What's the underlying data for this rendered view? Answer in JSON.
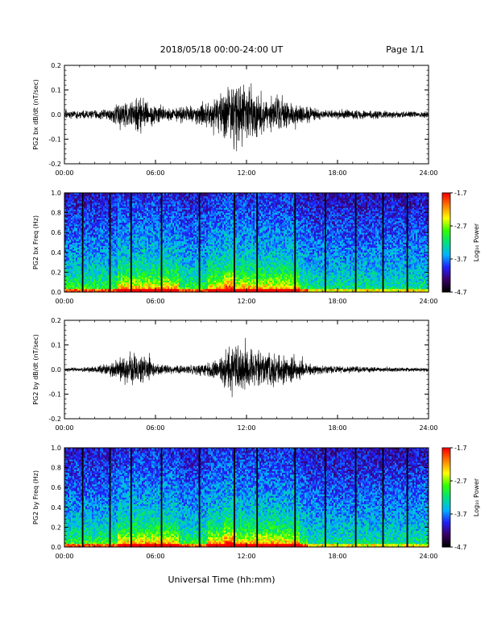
{
  "header": {
    "date_range": "2018/05/18  00:00-24:00 UT",
    "page": "Page 1/1"
  },
  "xaxis": {
    "label": "Universal Time (hh:mm)",
    "ticks": [
      "00:00",
      "06:00",
      "12:00",
      "18:00",
      "24:00"
    ],
    "range_hours": [
      0,
      24
    ]
  },
  "colorbar": {
    "label": "Log₁₀ Power",
    "ticks": [
      "-1.7",
      "-2.7",
      "-3.7",
      "-4.7"
    ],
    "range": [
      -4.7,
      -1.7
    ],
    "colors": [
      "#000000",
      "#3a0066",
      "#2020ff",
      "#00b4ff",
      "#00e080",
      "#30ff00",
      "#ffff00",
      "#ff8000",
      "#ff0000"
    ]
  },
  "chart_data": [
    {
      "type": "line",
      "ylabel": "PG2 bx dB/dt (nT/sec)",
      "ylim": [
        -0.2,
        0.2
      ],
      "yticks": [
        "0.2",
        "0.1",
        "0.0",
        "-0.1",
        "-0.2"
      ],
      "x": [
        0,
        1,
        2,
        3,
        4,
        5,
        6,
        7,
        8,
        9,
        10,
        11,
        12,
        13,
        14,
        15,
        16,
        17,
        18,
        19,
        20,
        21,
        22,
        23,
        24
      ],
      "amplitude_envelope": [
        0.02,
        0.02,
        0.02,
        0.03,
        0.06,
        0.09,
        0.05,
        0.03,
        0.04,
        0.05,
        0.07,
        0.16,
        0.15,
        0.1,
        0.09,
        0.05,
        0.04,
        0.02,
        0.02,
        0.02,
        0.02,
        0.02,
        0.015,
        0.015,
        0.015
      ],
      "color": "#000000"
    },
    {
      "type": "heatmap",
      "ylabel": "PG2 bx Freq (Hz)",
      "ylim": [
        0,
        1
      ],
      "yticks": [
        "1.0",
        "0.8",
        "0.6",
        "0.4",
        "0.2",
        "0.0"
      ],
      "x_hours": [
        0,
        24
      ],
      "dark_vertical_lines_hours": [
        1.2,
        3.0,
        4.4,
        6.4,
        8.9,
        11.2,
        12.7,
        15.2,
        17.2,
        19.2,
        21.0,
        22.6
      ],
      "low_freq_enhancement_hours": [
        [
          3.5,
          7.5
        ],
        [
          9.5,
          15.5
        ]
      ]
    },
    {
      "type": "line",
      "ylabel": "PG2 by dB/dt (nT/sec)",
      "ylim": [
        -0.2,
        0.2
      ],
      "yticks": [
        "0.2",
        "0.1",
        "0.0",
        "-0.1",
        "-0.2"
      ],
      "x": [
        0,
        1,
        2,
        3,
        4,
        5,
        6,
        7,
        8,
        9,
        10,
        11,
        12,
        13,
        14,
        15,
        16,
        17,
        18,
        19,
        20,
        21,
        22,
        23,
        24
      ],
      "amplitude_envelope": [
        0.01,
        0.01,
        0.015,
        0.03,
        0.08,
        0.08,
        0.03,
        0.02,
        0.02,
        0.03,
        0.05,
        0.12,
        0.09,
        0.08,
        0.08,
        0.06,
        0.03,
        0.02,
        0.015,
        0.015,
        0.015,
        0.01,
        0.01,
        0.01,
        0.01
      ],
      "color": "#000000"
    },
    {
      "type": "heatmap",
      "ylabel": "PG2 by Freq (Hz)",
      "ylim": [
        0,
        1
      ],
      "yticks": [
        "1.0",
        "0.8",
        "0.6",
        "0.4",
        "0.2",
        "0.0"
      ],
      "x_hours": [
        0,
        24
      ],
      "dark_vertical_lines_hours": [
        1.2,
        3.0,
        4.4,
        6.4,
        8.9,
        11.2,
        12.7,
        15.2,
        17.2,
        19.2,
        21.0,
        22.6
      ],
      "low_freq_enhancement_hours": [
        [
          3.5,
          7.5
        ],
        [
          9.5,
          15.5
        ]
      ]
    }
  ]
}
